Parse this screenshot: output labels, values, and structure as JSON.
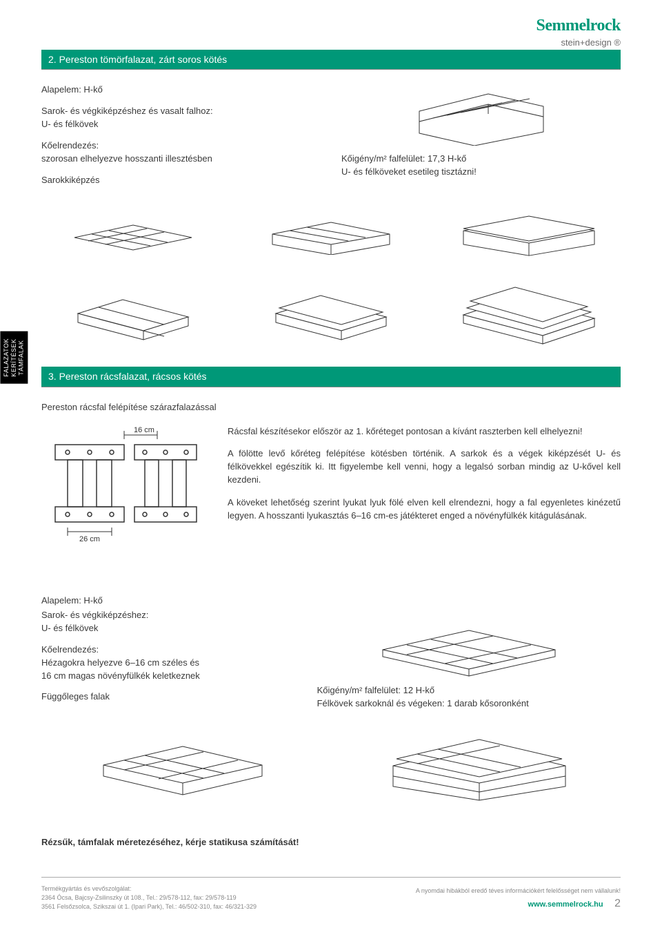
{
  "brand": {
    "name": "Semmelrock",
    "subtitle": "stein+design ®"
  },
  "side_label": "FALAZATOK\nKERÍTÉSEK\nTÁMFALAK",
  "section1": {
    "title": "2. Pereston tömörfalazat, zárt soros kötés",
    "left_a": "Alapelem: H-kő",
    "left_b": "Sarok- és végkiképzéshez és vasalt falhoz:",
    "left_c": "U- és félkövek",
    "left_d": "Kőelrendezés:",
    "left_e": "szorosan elhelyezve hosszanti illesztésben",
    "left_f": "Sarokkiképzés",
    "right_a": "Kőigény/m² falfelület: 17,3 H-kő",
    "right_b": "U- és félköveket esetileg tisztázni!"
  },
  "section2": {
    "title": "3. Pereston rácsfalazat, rácsos kötés",
    "subtitle": "Pereston rácsfal felépítése szárazfalazással",
    "dim_top": "16 cm",
    "dim_bottom": "26 cm",
    "para1": "Rácsfal készítésekor először az 1. kőréteget pontosan a kívánt raszterben kell elhelyezni!",
    "para2": "A fölötte levő kőréteg felépítése kötésben történik. A sarkok és a végek kiképzését U- és félkövekkel egészítik ki. Itt figyelembe kell venni, hogy a legalsó sorban mindig az U-kővel kell kezdeni.",
    "para3": "A köveket lehetőség szerint lyukat lyuk fölé elven kell elrendezni, hogy a fal egyenletes kinézetű legyen. A hosszanti lyukasztás 6–16 cm-es játékteret enged a növényfülkék kitágulásának."
  },
  "section3": {
    "left_a": "Alapelem: H-kő",
    "left_b": "Sarok- és végkiképzéshez:",
    "left_c": "U- és félkövek",
    "left_d": "Kőelrendezés:",
    "left_e": "Hézagokra helyezve 6–16 cm széles és",
    "left_f": "16 cm magas növényfülkék keletkeznek",
    "left_g": "Függőleges falak",
    "right_a": "Kőigény/m² falfelület: 12 H-kő",
    "right_b": "Félkövek sarkoknál és végeken: 1 darab kősoronként"
  },
  "note": "Rézsűk, támfalak méretezéséhez, kérje statikusa számítását!",
  "footer": {
    "l1": "Termékgyártás és vevőszolgálat:",
    "l2": "2364 Ócsa, Bajcsy-Zsilinszky út 108., Tel.: 29/578-112, fax: 29/578-119",
    "l3": "3561 Felsőzsolca, Szikszai út 1. (Ipari Park), Tel.: 46/502-310, fax: 46/321-329",
    "r1": "A nyomdai hibákból eredő téves információkért felelősséget nem vállalunk!",
    "site": "www.semmelrock.hu",
    "page": "2"
  },
  "colors": {
    "accent": "#009878",
    "text": "#3a3a3a",
    "muted": "#888888"
  }
}
